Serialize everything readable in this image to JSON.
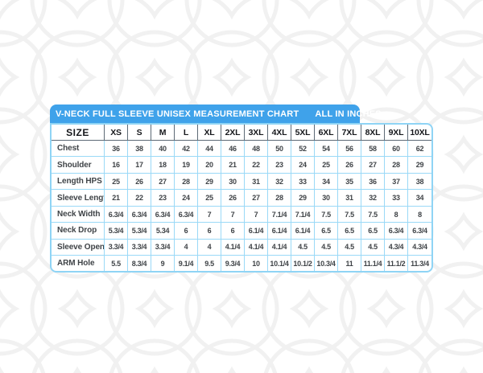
{
  "banner": {
    "title": "V-NECK FULL SLEEVE UNISEX MEASUREMENT CHART",
    "subtitle": "ALL IN INCHES"
  },
  "chart_data": {
    "type": "table",
    "title": "V-NECK FULL SLEEVE UNISEX MEASUREMENT CHART",
    "units_note": "ALL IN INCHES",
    "corner_header": "SIZE",
    "columns": [
      "XS",
      "S",
      "M",
      "L",
      "XL",
      "2XL",
      "3XL",
      "4XL",
      "5XL",
      "6XL",
      "7XL",
      "8XL",
      "9XL",
      "10XL"
    ],
    "rows": [
      {
        "label": "Chest",
        "values": [
          "36",
          "38",
          "40",
          "42",
          "44",
          "46",
          "48",
          "50",
          "52",
          "54",
          "56",
          "58",
          "60",
          "62"
        ]
      },
      {
        "label": "Shoulder",
        "values": [
          "16",
          "17",
          "18",
          "19",
          "20",
          "21",
          "22",
          "23",
          "24",
          "25",
          "26",
          "27",
          "28",
          "29"
        ]
      },
      {
        "label": "Length HPS",
        "values": [
          "25",
          "26",
          "27",
          "28",
          "29",
          "30",
          "31",
          "32",
          "33",
          "34",
          "35",
          "36",
          "37",
          "38"
        ]
      },
      {
        "label": "Sleeve Length",
        "values": [
          "21",
          "22",
          "23",
          "24",
          "25",
          "26",
          "27",
          "28",
          "29",
          "30",
          "31",
          "32",
          "33",
          "34"
        ]
      },
      {
        "label": "Neck Width",
        "values": [
          "6.3/4",
          "6.3/4",
          "6.3/4",
          "6.3/4",
          "7",
          "7",
          "7",
          "7.1/4",
          "7.1/4",
          "7.5",
          "7.5",
          "7.5",
          "8",
          "8"
        ]
      },
      {
        "label": "Neck Drop",
        "values": [
          "5.3/4",
          "5.3/4",
          "5.34",
          "6",
          "6",
          "6",
          "6.1/4",
          "6.1/4",
          "6.1/4",
          "6.5",
          "6.5",
          "6.5",
          "6.3/4",
          "6.3/4"
        ]
      },
      {
        "label": "Sleeve Open",
        "values": [
          "3.3/4",
          "3.3/4",
          "3.3/4",
          "4",
          "4",
          "4.1/4",
          "4.1/4",
          "4.1/4",
          "4.5",
          "4.5",
          "4.5",
          "4.5",
          "4.3/4",
          "4.3/4"
        ]
      },
      {
        "label": "ARM Hole",
        "values": [
          "5.5",
          "8.3/4",
          "9",
          "9.1/4",
          "9.5",
          "9.3/4",
          "10",
          "10.1/4",
          "10.1/2",
          "10.3/4",
          "11",
          "11.1/4",
          "11.1/2",
          "11.3/4"
        ]
      }
    ]
  },
  "colors": {
    "banner_bg": "#3fa2ea",
    "banner_text": "#ffffff",
    "grid_line": "#9ad9f7",
    "table_border": "#8fd4f5",
    "header_divider": "#5d6a76",
    "header_text": "#16181c",
    "cell_text": "#3f4347",
    "pattern_line": "#f1f1f1"
  }
}
